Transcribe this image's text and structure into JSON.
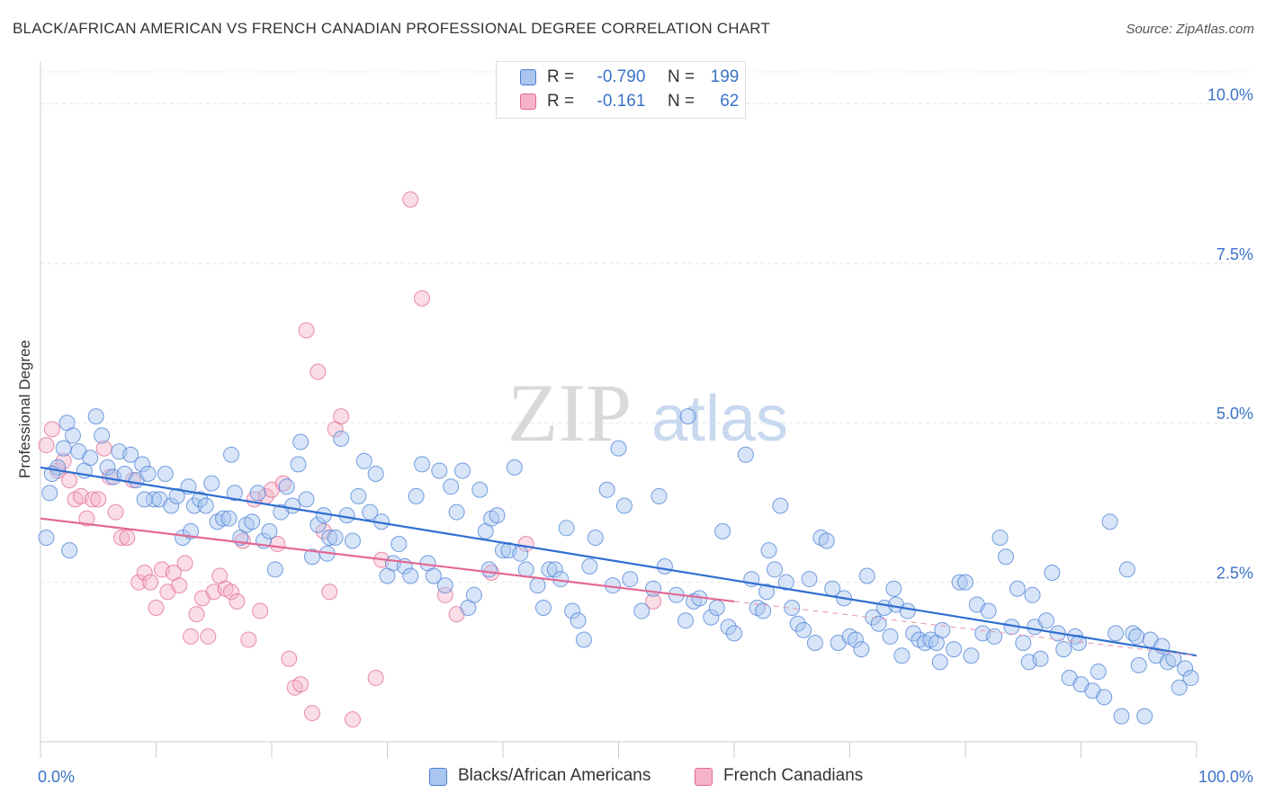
{
  "header": {
    "title": "BLACK/AFRICAN AMERICAN VS FRENCH CANADIAN PROFESSIONAL DEGREE CORRELATION CHART",
    "source": "Source: ZipAtlas.com"
  },
  "watermark": {
    "zip": "ZIP",
    "atlas": "atlas"
  },
  "legend": {
    "rows": [
      {
        "r_label": "R =",
        "r_value": "-0.790",
        "n_label": "N =",
        "n_value": "199"
      },
      {
        "r_label": "R =",
        "r_value": "-0.161",
        "n_label": "N =",
        "n_value": "62"
      }
    ]
  },
  "bottom_legend": [
    {
      "label": "Blacks/African Americans"
    },
    {
      "label": "French Canadians"
    }
  ],
  "chart_data": {
    "type": "scatter",
    "ylabel": "Professional Degree",
    "xlim": [
      0,
      100
    ],
    "ylim": [
      0,
      10.5
    ],
    "x_ticks": [
      {
        "value": 0,
        "label": "0.0%"
      },
      {
        "value": 100,
        "label": "100.0%"
      }
    ],
    "y_ticks": [
      {
        "value": 2.5,
        "label": "2.5%"
      },
      {
        "value": 5.0,
        "label": "5.0%"
      },
      {
        "value": 7.5,
        "label": "7.5%"
      },
      {
        "value": 10.0,
        "label": "10.0%"
      }
    ],
    "grid": "horizontal-dashed",
    "legend_placement": "top-center",
    "colors": {
      "blue": "#4a7fd4",
      "blue_fill": "#a9c6ef",
      "pink": "#e36893",
      "pink_fill": "#f4b3c8",
      "tick": "#3a72c8"
    },
    "series": [
      {
        "name": "Blacks/African Americans",
        "color": "blue",
        "trend": {
          "x": [
            0,
            100
          ],
          "y": [
            4.3,
            1.35
          ]
        },
        "points": [
          [
            0.5,
            3.2
          ],
          [
            0.8,
            3.9
          ],
          [
            1.5,
            4.3
          ],
          [
            2,
            4.6
          ],
          [
            2.3,
            5.0
          ],
          [
            2.8,
            4.8
          ],
          [
            3.3,
            4.55
          ],
          [
            3.8,
            4.25
          ],
          [
            4.3,
            4.45
          ],
          [
            4.8,
            5.1
          ],
          [
            5.3,
            4.8
          ],
          [
            5.8,
            4.3
          ],
          [
            6.3,
            4.15
          ],
          [
            6.8,
            4.55
          ],
          [
            7.3,
            4.2
          ],
          [
            7.8,
            4.5
          ],
          [
            8.3,
            4.1
          ],
          [
            8.8,
            4.35
          ],
          [
            9.3,
            4.2
          ],
          [
            9.8,
            3.8
          ],
          [
            10.3,
            3.8
          ],
          [
            10.8,
            4.2
          ],
          [
            11.3,
            3.7
          ],
          [
            11.8,
            3.85
          ],
          [
            12.3,
            3.2
          ],
          [
            12.8,
            4.0
          ],
          [
            13.3,
            3.7
          ],
          [
            13.8,
            3.8
          ],
          [
            14.3,
            3.7
          ],
          [
            14.8,
            4.05
          ],
          [
            15.3,
            3.45
          ],
          [
            15.8,
            3.5
          ],
          [
            16.3,
            3.5
          ],
          [
            16.8,
            3.9
          ],
          [
            17.3,
            3.2
          ],
          [
            17.8,
            3.4
          ],
          [
            18.3,
            3.45
          ],
          [
            18.8,
            3.9
          ],
          [
            19.3,
            3.15
          ],
          [
            19.8,
            3.3
          ],
          [
            20.3,
            2.7
          ],
          [
            20.8,
            3.6
          ],
          [
            21.3,
            4.0
          ],
          [
            21.8,
            3.7
          ],
          [
            22.3,
            4.35
          ],
          [
            22.5,
            4.7
          ],
          [
            23,
            3.8
          ],
          [
            23.5,
            2.9
          ],
          [
            24,
            3.4
          ],
          [
            24.5,
            3.55
          ],
          [
            25,
            3.2
          ],
          [
            25.5,
            3.2
          ],
          [
            26,
            4.75
          ],
          [
            26.5,
            3.55
          ],
          [
            27,
            3.15
          ],
          [
            27.5,
            3.85
          ],
          [
            28,
            4.4
          ],
          [
            28.5,
            3.6
          ],
          [
            29,
            4.2
          ],
          [
            29.5,
            3.45
          ],
          [
            30,
            2.6
          ],
          [
            30.5,
            2.8
          ],
          [
            31,
            3.1
          ],
          [
            31.5,
            2.75
          ],
          [
            32,
            2.6
          ],
          [
            32.5,
            3.85
          ],
          [
            33,
            4.35
          ],
          [
            33.5,
            2.8
          ],
          [
            34,
            2.6
          ],
          [
            34.5,
            4.25
          ],
          [
            35,
            2.45
          ],
          [
            35.5,
            4.0
          ],
          [
            36,
            3.6
          ],
          [
            36.5,
            4.25
          ],
          [
            37,
            2.1
          ],
          [
            37.5,
            2.3
          ],
          [
            38,
            3.95
          ],
          [
            38.5,
            3.3
          ],
          [
            39,
            3.5
          ],
          [
            39.5,
            3.55
          ],
          [
            40,
            3.0
          ],
          [
            40.5,
            3.0
          ],
          [
            41,
            4.3
          ],
          [
            41.5,
            2.95
          ],
          [
            42,
            2.7
          ],
          [
            43,
            2.45
          ],
          [
            43.5,
            2.1
          ],
          [
            44,
            2.7
          ],
          [
            44.5,
            2.7
          ],
          [
            45,
            2.55
          ],
          [
            45.5,
            3.35
          ],
          [
            46,
            2.05
          ],
          [
            47,
            1.6
          ],
          [
            47.5,
            2.75
          ],
          [
            48,
            3.2
          ],
          [
            49,
            3.95
          ],
          [
            49.5,
            2.45
          ],
          [
            50,
            4.6
          ],
          [
            50.5,
            3.7
          ],
          [
            51,
            2.55
          ],
          [
            52,
            2.05
          ],
          [
            53,
            2.4
          ],
          [
            53.5,
            3.85
          ],
          [
            54,
            2.75
          ],
          [
            55,
            2.3
          ],
          [
            56,
            5.1
          ],
          [
            56.5,
            2.2
          ],
          [
            57,
            2.25
          ],
          [
            58,
            1.95
          ],
          [
            58.5,
            2.1
          ],
          [
            59,
            3.3
          ],
          [
            59.5,
            1.8
          ],
          [
            60,
            1.7
          ],
          [
            61,
            4.5
          ],
          [
            61.5,
            2.55
          ],
          [
            62,
            2.1
          ],
          [
            62.5,
            2.05
          ],
          [
            63,
            3.0
          ],
          [
            63.5,
            2.7
          ],
          [
            64,
            3.7
          ],
          [
            64.5,
            2.5
          ],
          [
            65,
            2.1
          ],
          [
            65.5,
            1.85
          ],
          [
            66,
            1.75
          ],
          [
            66.5,
            2.55
          ],
          [
            67,
            1.55
          ],
          [
            67.5,
            3.2
          ],
          [
            68,
            3.15
          ],
          [
            68.5,
            2.4
          ],
          [
            69,
            1.55
          ],
          [
            69.5,
            2.25
          ],
          [
            70,
            1.65
          ],
          [
            70.5,
            1.6
          ],
          [
            71,
            1.45
          ],
          [
            71.5,
            2.6
          ],
          [
            72,
            1.95
          ],
          [
            72.5,
            1.85
          ],
          [
            73,
            2.1
          ],
          [
            73.5,
            1.65
          ],
          [
            74,
            2.15
          ],
          [
            74.5,
            1.35
          ],
          [
            75,
            2.05
          ],
          [
            75.5,
            1.7
          ],
          [
            76,
            1.6
          ],
          [
            76.5,
            1.55
          ],
          [
            77,
            1.6
          ],
          [
            77.5,
            1.55
          ],
          [
            78,
            1.75
          ],
          [
            79,
            1.45
          ],
          [
            79.5,
            2.5
          ],
          [
            80,
            2.5
          ],
          [
            80.5,
            1.35
          ],
          [
            81,
            2.15
          ],
          [
            81.5,
            1.7
          ],
          [
            82,
            2.05
          ],
          [
            82.5,
            1.65
          ],
          [
            83,
            3.2
          ],
          [
            83.5,
            2.9
          ],
          [
            84,
            1.8
          ],
          [
            84.5,
            2.4
          ],
          [
            85,
            1.55
          ],
          [
            85.5,
            1.25
          ],
          [
            86,
            1.8
          ],
          [
            86.5,
            1.3
          ],
          [
            87,
            1.9
          ],
          [
            87.5,
            2.65
          ],
          [
            88,
            1.7
          ],
          [
            88.5,
            1.45
          ],
          [
            89,
            1.0
          ],
          [
            89.5,
            1.65
          ],
          [
            90,
            0.9
          ],
          [
            91,
            0.8
          ],
          [
            91.5,
            1.1
          ],
          [
            92,
            0.7
          ],
          [
            92.5,
            3.45
          ],
          [
            93,
            1.7
          ],
          [
            93.5,
            0.4
          ],
          [
            94,
            2.7
          ],
          [
            94.5,
            1.7
          ],
          [
            95,
            1.2
          ],
          [
            95.5,
            0.4
          ],
          [
            96,
            1.6
          ],
          [
            96.5,
            1.35
          ],
          [
            97,
            1.5
          ],
          [
            97.5,
            1.25
          ],
          [
            98,
            1.3
          ],
          [
            98.5,
            0.85
          ],
          [
            99,
            1.15
          ],
          [
            99.5,
            1.0
          ],
          [
            1,
            4.2
          ],
          [
            2.5,
            3.0
          ],
          [
            9,
            3.8
          ],
          [
            13,
            3.3
          ],
          [
            16.5,
            4.5
          ],
          [
            24.8,
            2.95
          ],
          [
            38.8,
            2.7
          ],
          [
            46.5,
            1.9
          ],
          [
            55.8,
            1.9
          ],
          [
            62.8,
            2.35
          ],
          [
            73.8,
            2.4
          ],
          [
            77.8,
            1.25
          ],
          [
            85.8,
            2.3
          ],
          [
            89.8,
            1.55
          ],
          [
            94.8,
            1.65
          ]
        ]
      },
      {
        "name": "French Canadians",
        "color": "pink",
        "trend": {
          "x": [
            0,
            60
          ],
          "y": [
            3.5,
            2.2
          ]
        },
        "trend_dashed": {
          "x": [
            60,
            100
          ],
          "y": [
            2.2,
            1.35
          ]
        },
        "points": [
          [
            0.5,
            4.65
          ],
          [
            1,
            4.9
          ],
          [
            1.5,
            4.25
          ],
          [
            2,
            4.4
          ],
          [
            2.5,
            4.1
          ],
          [
            3,
            3.8
          ],
          [
            3.5,
            3.85
          ],
          [
            4,
            3.5
          ],
          [
            4.5,
            3.8
          ],
          [
            5,
            3.8
          ],
          [
            5.5,
            4.6
          ],
          [
            6,
            4.15
          ],
          [
            6.5,
            3.6
          ],
          [
            7,
            3.2
          ],
          [
            7.5,
            3.2
          ],
          [
            8,
            4.1
          ],
          [
            8.5,
            2.5
          ],
          [
            9,
            2.65
          ],
          [
            9.5,
            2.5
          ],
          [
            10,
            2.1
          ],
          [
            10.5,
            2.7
          ],
          [
            11,
            2.35
          ],
          [
            11.5,
            2.65
          ],
          [
            12,
            2.45
          ],
          [
            12.5,
            2.8
          ],
          [
            13,
            1.65
          ],
          [
            13.5,
            2.0
          ],
          [
            14,
            2.25
          ],
          [
            14.5,
            1.65
          ],
          [
            15,
            2.35
          ],
          [
            15.5,
            2.6
          ],
          [
            16,
            2.4
          ],
          [
            16.5,
            2.35
          ],
          [
            17,
            2.2
          ],
          [
            17.5,
            3.15
          ],
          [
            18,
            1.6
          ],
          [
            18.5,
            3.8
          ],
          [
            19,
            2.05
          ],
          [
            19.5,
            3.85
          ],
          [
            20,
            3.95
          ],
          [
            20.5,
            3.1
          ],
          [
            21,
            4.05
          ],
          [
            21.5,
            1.3
          ],
          [
            22,
            0.85
          ],
          [
            22.5,
            0.9
          ],
          [
            23,
            6.45
          ],
          [
            23.5,
            0.45
          ],
          [
            24,
            5.8
          ],
          [
            24.5,
            3.3
          ],
          [
            25,
            2.35
          ],
          [
            25.5,
            4.9
          ],
          [
            26,
            5.1
          ],
          [
            27,
            0.35
          ],
          [
            29,
            1.0
          ],
          [
            29.5,
            2.85
          ],
          [
            32,
            8.5
          ],
          [
            33,
            6.95
          ],
          [
            35,
            2.3
          ],
          [
            36,
            2.0
          ],
          [
            39,
            2.65
          ],
          [
            42,
            3.1
          ],
          [
            53,
            2.2
          ]
        ]
      }
    ]
  }
}
